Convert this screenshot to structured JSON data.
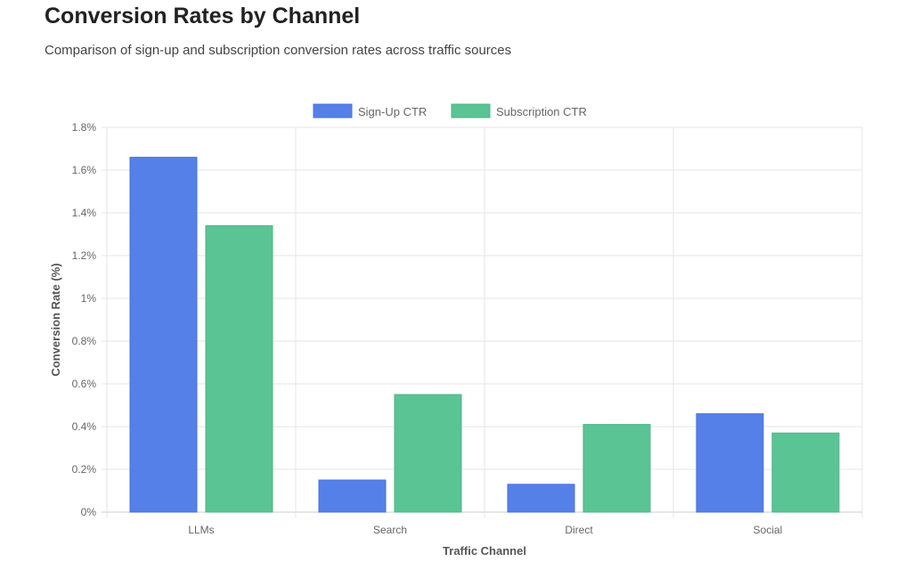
{
  "header": {
    "title": "Conversion Rates by Channel",
    "subtitle": "Comparison of sign-up and subscription conversion rates across traffic sources"
  },
  "chart_data": {
    "type": "bar",
    "categories": [
      "LLMs",
      "Search",
      "Direct",
      "Social"
    ],
    "series": [
      {
        "name": "Sign-Up CTR",
        "values": [
          1.66,
          0.15,
          0.13,
          0.46
        ],
        "color": "#5580e8"
      },
      {
        "name": "Subscription CTR",
        "values": [
          1.34,
          0.55,
          0.41,
          0.37
        ],
        "color": "#5ac494"
      }
    ],
    "xlabel": "Traffic Channel",
    "ylabel": "Conversion Rate (%)",
    "ylim": [
      0,
      1.8
    ],
    "yticks": [
      0,
      0.2,
      0.4,
      0.6,
      0.8,
      1,
      1.2,
      1.4,
      1.6,
      1.8
    ],
    "ytick_labels": [
      "0%",
      "0.2%",
      "0.4%",
      "0.6%",
      "0.8%",
      "1%",
      "1.2%",
      "1.4%",
      "1.6%",
      "1.8%"
    ],
    "grid": true,
    "legend": "top"
  }
}
